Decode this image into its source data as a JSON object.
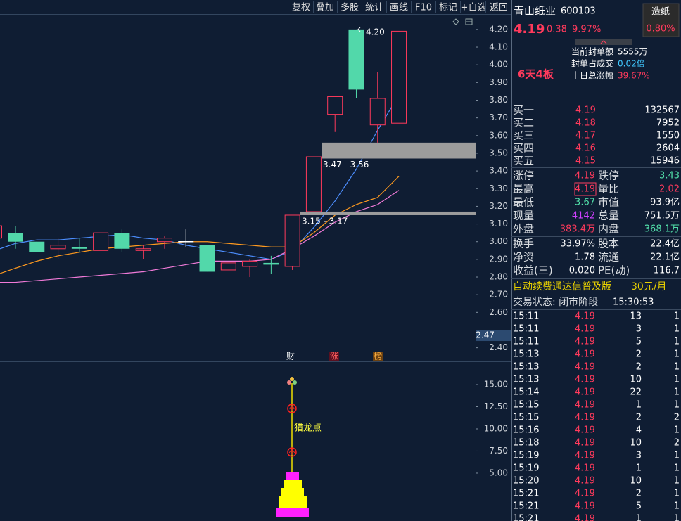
{
  "toolbar": [
    "复权",
    "叠加",
    "多股",
    "统计",
    "画线",
    "F10",
    "标记",
    "+自选",
    "返回"
  ],
  "chart": {
    "type": "candlestick",
    "ylim": [
      2.323,
      4.287
    ],
    "yticks": [
      {
        "value": 4.2,
        "label": "4.20"
      },
      {
        "value": 4.1,
        "label": "4.10"
      },
      {
        "value": 4.0,
        "label": "4.00"
      },
      {
        "value": 3.9,
        "label": "3.90"
      },
      {
        "value": 3.8,
        "label": "3.80"
      },
      {
        "value": 3.7,
        "label": "3.70"
      },
      {
        "value": 3.6,
        "label": "3.60"
      },
      {
        "value": 3.5,
        "label": "3.50"
      },
      {
        "value": 3.4,
        "label": "3.40"
      },
      {
        "value": 3.3,
        "label": "3.30"
      },
      {
        "value": 3.2,
        "label": "3.20"
      },
      {
        "value": 3.1,
        "label": "3.10"
      },
      {
        "value": 3.0,
        "label": "3.00"
      },
      {
        "value": 2.9,
        "label": "2.90"
      },
      {
        "value": 2.8,
        "label": "2.80"
      },
      {
        "value": 2.7,
        "label": "2.70"
      },
      {
        "value": 2.6,
        "label": "2.60"
      },
      {
        "value": 2.4,
        "label": "2.40"
      }
    ],
    "cursor": {
      "value": 2.47,
      "label": "2.47"
    },
    "up_color": "#ff3a5c",
    "down_color": "#52d8aa",
    "doji_color": "#ffffff",
    "candles": [
      {
        "open": 3.02,
        "high": 3.09,
        "low": 3.0,
        "close": 3.09
      },
      {
        "open": 3.05,
        "high": 3.09,
        "low": 2.96,
        "close": 3.0
      },
      {
        "open": 3.0,
        "high": 3.0,
        "low": 2.94,
        "close": 2.94
      },
      {
        "open": 2.96,
        "high": 3.02,
        "low": 2.9,
        "close": 2.98
      },
      {
        "open": 2.97,
        "high": 3.02,
        "low": 2.94,
        "close": 2.96
      },
      {
        "open": 2.95,
        "high": 3.05,
        "low": 2.95,
        "close": 3.05
      },
      {
        "open": 3.05,
        "high": 3.07,
        "low": 2.94,
        "close": 2.96
      },
      {
        "open": 2.95,
        "high": 2.98,
        "low": 2.9,
        "close": 2.96
      },
      {
        "open": 3.0,
        "high": 3.03,
        "low": 2.96,
        "close": 3.02
      },
      {
        "open": 3.0,
        "high": 3.07,
        "low": 2.97,
        "close": 3.0
      },
      {
        "open": 2.98,
        "high": 2.98,
        "low": 2.83,
        "close": 2.83
      },
      {
        "open": 2.84,
        "high": 2.88,
        "low": 2.84,
        "close": 2.88
      },
      {
        "open": 2.86,
        "high": 2.9,
        "low": 2.8,
        "close": 2.89
      },
      {
        "open": 2.88,
        "high": 2.92,
        "low": 2.82,
        "close": 2.87
      },
      {
        "open": 2.86,
        "high": 3.15,
        "low": 2.84,
        "close": 3.15
      },
      {
        "open": 3.17,
        "high": 3.48,
        "low": 3.17,
        "close": 3.48
      },
      {
        "open": 3.72,
        "high": 3.82,
        "low": 3.62,
        "close": 3.82
      },
      {
        "open": 4.2,
        "high": 4.2,
        "low": 3.81,
        "close": 3.86
      },
      {
        "open": 3.66,
        "high": 3.96,
        "low": 3.56,
        "close": 3.81
      },
      {
        "open": 3.67,
        "high": 4.19,
        "low": 3.67,
        "close": 4.19
      }
    ],
    "ma": [
      {
        "color": "#4d8fff",
        "values": [
          2.96,
          2.99,
          3.01,
          3.01,
          3.02,
          3.03,
          3.04,
          3.02,
          3.01,
          2.98,
          2.96,
          2.94,
          2.92,
          2.9,
          2.95,
          3.08,
          3.23,
          3.41,
          3.63,
          3.83
        ]
      },
      {
        "color": "#ff9a1f",
        "values": [
          2.82,
          2.85,
          2.89,
          2.92,
          2.94,
          2.96,
          2.97,
          2.98,
          2.99,
          3.0,
          3.0,
          2.99,
          2.98,
          2.97,
          2.97,
          3.05,
          3.15,
          3.21,
          3.25,
          3.37
        ]
      },
      {
        "color": "#f07ad8",
        "values": [
          2.77,
          2.77,
          2.78,
          2.79,
          2.8,
          2.81,
          2.82,
          2.83,
          2.85,
          2.87,
          2.89,
          2.89,
          2.89,
          2.9,
          2.96,
          3.03,
          3.11,
          3.17,
          3.21,
          3.29
        ]
      }
    ],
    "zones": [
      {
        "lo": 3.47,
        "hi": 3.56,
        "label": "3.47 - 3.56"
      },
      {
        "lo": 3.15,
        "hi": 3.17,
        "label": "3.15 - 3.17"
      }
    ],
    "peak": {
      "value": 4.2,
      "label": "4.20"
    },
    "markers": [
      "财",
      "涨",
      "榜"
    ]
  },
  "indicator": {
    "label": "猎龙点",
    "ylim": [
      -0.4,
      17.46
    ],
    "yticks": [
      {
        "value": 15,
        "label": "15.00"
      },
      {
        "value": 12.5,
        "label": "12.50"
      },
      {
        "value": 10,
        "label": "10.00"
      },
      {
        "value": 7.5,
        "label": "7.50"
      },
      {
        "value": 5,
        "label": "5.00"
      }
    ]
  },
  "quote": {
    "name": "青山纸业",
    "code": "600103",
    "price": "4.19",
    "change": "0.38",
    "pct": "9.97%",
    "sector": "造纸",
    "sector_pct": "0.80%"
  },
  "seal": {
    "rows": [
      [
        "当前封单额",
        "5555万"
      ],
      [
        "封单占成交",
        "0.02倍"
      ],
      [
        "十日总涨幅",
        "39.67%"
      ]
    ],
    "board": "6天4板"
  },
  "orderbook": [
    [
      "买一",
      "4.19",
      "132567"
    ],
    [
      "买二",
      "4.18",
      "7952"
    ],
    [
      "买三",
      "4.17",
      "1550"
    ],
    [
      "买四",
      "4.16",
      "2604"
    ],
    [
      "买五",
      "4.15",
      "15946"
    ]
  ],
  "stats": [
    [
      "涨停",
      "4.19",
      "跌停",
      "3.43"
    ],
    [
      "最高",
      "4.19",
      "量比",
      "2.02"
    ],
    [
      "最低",
      "3.67",
      "市值",
      "93.9亿"
    ],
    [
      "现量",
      "4142",
      "总量",
      "751.5万"
    ],
    [
      "外盘",
      "383.4万",
      "内盘",
      "368.1万"
    ]
  ],
  "fund": [
    [
      "换手",
      "33.97%",
      "股本",
      "22.4亿"
    ],
    [
      "净资",
      "1.78",
      "流通",
      "22.1亿"
    ],
    [
      "收益(三)",
      "0.020",
      "PE(动)",
      "116.7"
    ]
  ],
  "promo": {
    "text": "自动续费通达信普及版",
    "price": "30元/月"
  },
  "status": {
    "label": "交易状态: 闭市阶段",
    "time": "15:30:53"
  },
  "trades": [
    [
      "15:11",
      "4.19",
      "13",
      "1"
    ],
    [
      "15:11",
      "4.19",
      "3",
      "1"
    ],
    [
      "15:11",
      "4.19",
      "5",
      "1"
    ],
    [
      "15:13",
      "4.19",
      "2",
      "1"
    ],
    [
      "15:13",
      "4.19",
      "2",
      "1"
    ],
    [
      "15:13",
      "4.19",
      "10",
      "1"
    ],
    [
      "15:14",
      "4.19",
      "22",
      "1"
    ],
    [
      "15:15",
      "4.19",
      "1",
      "1"
    ],
    [
      "15:15",
      "4.19",
      "2",
      "2"
    ],
    [
      "15:16",
      "4.19",
      "4",
      "1"
    ],
    [
      "15:18",
      "4.19",
      "10",
      "2"
    ],
    [
      "15:19",
      "4.19",
      "3",
      "1"
    ],
    [
      "15:19",
      "4.19",
      "1",
      "1"
    ],
    [
      "15:20",
      "4.19",
      "10",
      "1"
    ],
    [
      "15:21",
      "4.19",
      "2",
      "1"
    ],
    [
      "15:21",
      "4.19",
      "5",
      "1"
    ],
    [
      "15:21",
      "4.19",
      "1",
      "1"
    ]
  ]
}
